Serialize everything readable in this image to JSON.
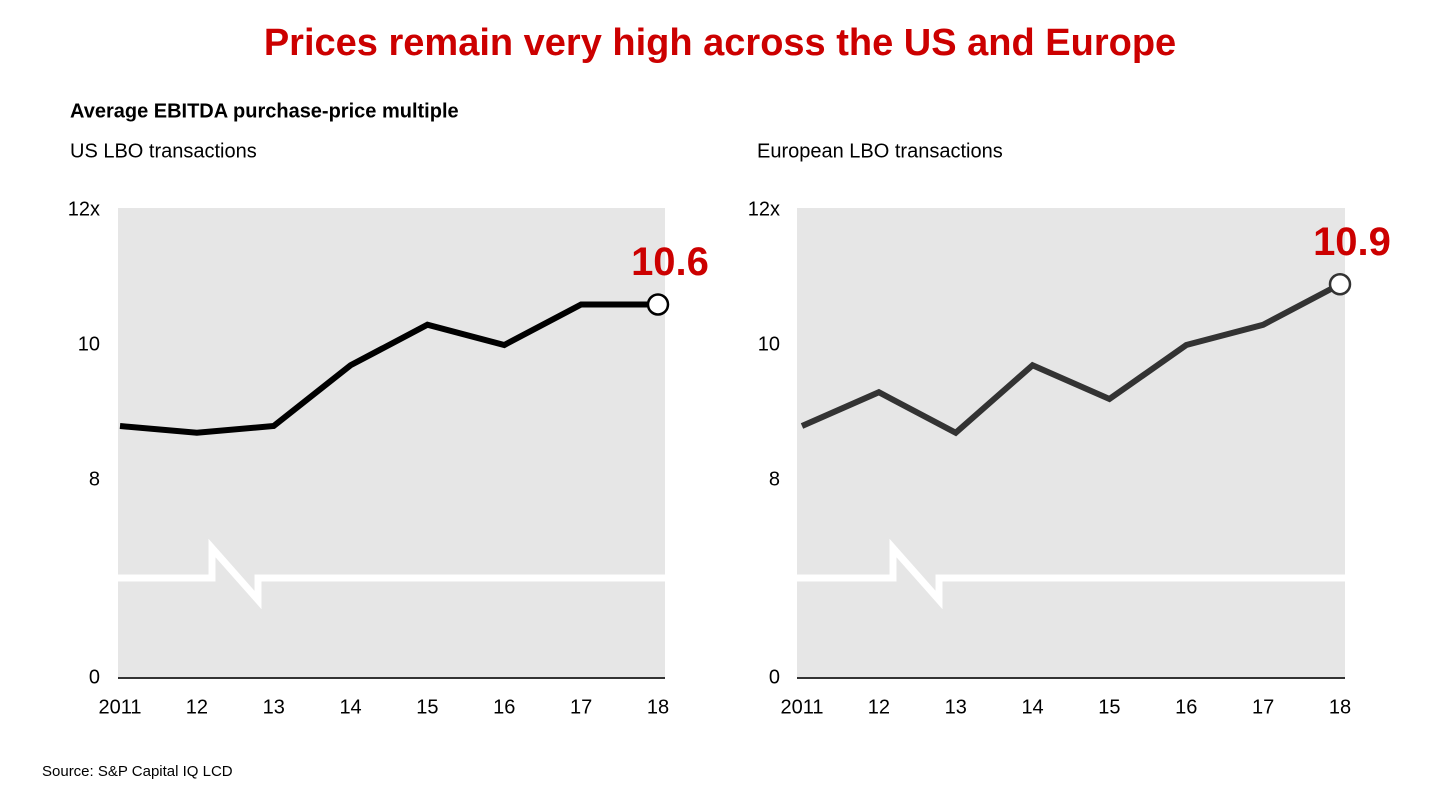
{
  "title": "Prices remain very high across the US and Europe",
  "subtitle": "Average EBITDA purchase-price multiple",
  "source": "Source: S&P Capital IQ LCD",
  "chart_data": [
    {
      "type": "line",
      "title": "US LBO transactions",
      "categories": [
        "2011",
        "12",
        "13",
        "14",
        "15",
        "16",
        "17",
        "18"
      ],
      "values": [
        8.8,
        8.7,
        8.8,
        9.7,
        10.3,
        10.0,
        10.6,
        10.6
      ],
      "color": "#000000",
      "label_color": "#cc0000",
      "ylim": [
        0,
        12
      ],
      "yticks": [
        0,
        8,
        10,
        {
          "value": 12,
          "label": "12x"
        }
      ],
      "axis_break": true,
      "plot_background": "#e6e6e6"
    },
    {
      "type": "line",
      "title": "European LBO transactions",
      "categories": [
        "2011",
        "12",
        "13",
        "14",
        "15",
        "16",
        "17",
        "18"
      ],
      "values": [
        8.8,
        9.3,
        8.7,
        9.7,
        9.2,
        10.0,
        10.3,
        10.9
      ],
      "color": "#333333",
      "label_color": "#cc0000",
      "ylim": [
        0,
        12
      ],
      "yticks": [
        0,
        8,
        10,
        {
          "value": 12,
          "label": "12x"
        }
      ],
      "axis_break": true,
      "plot_background": "#e6e6e6"
    }
  ]
}
